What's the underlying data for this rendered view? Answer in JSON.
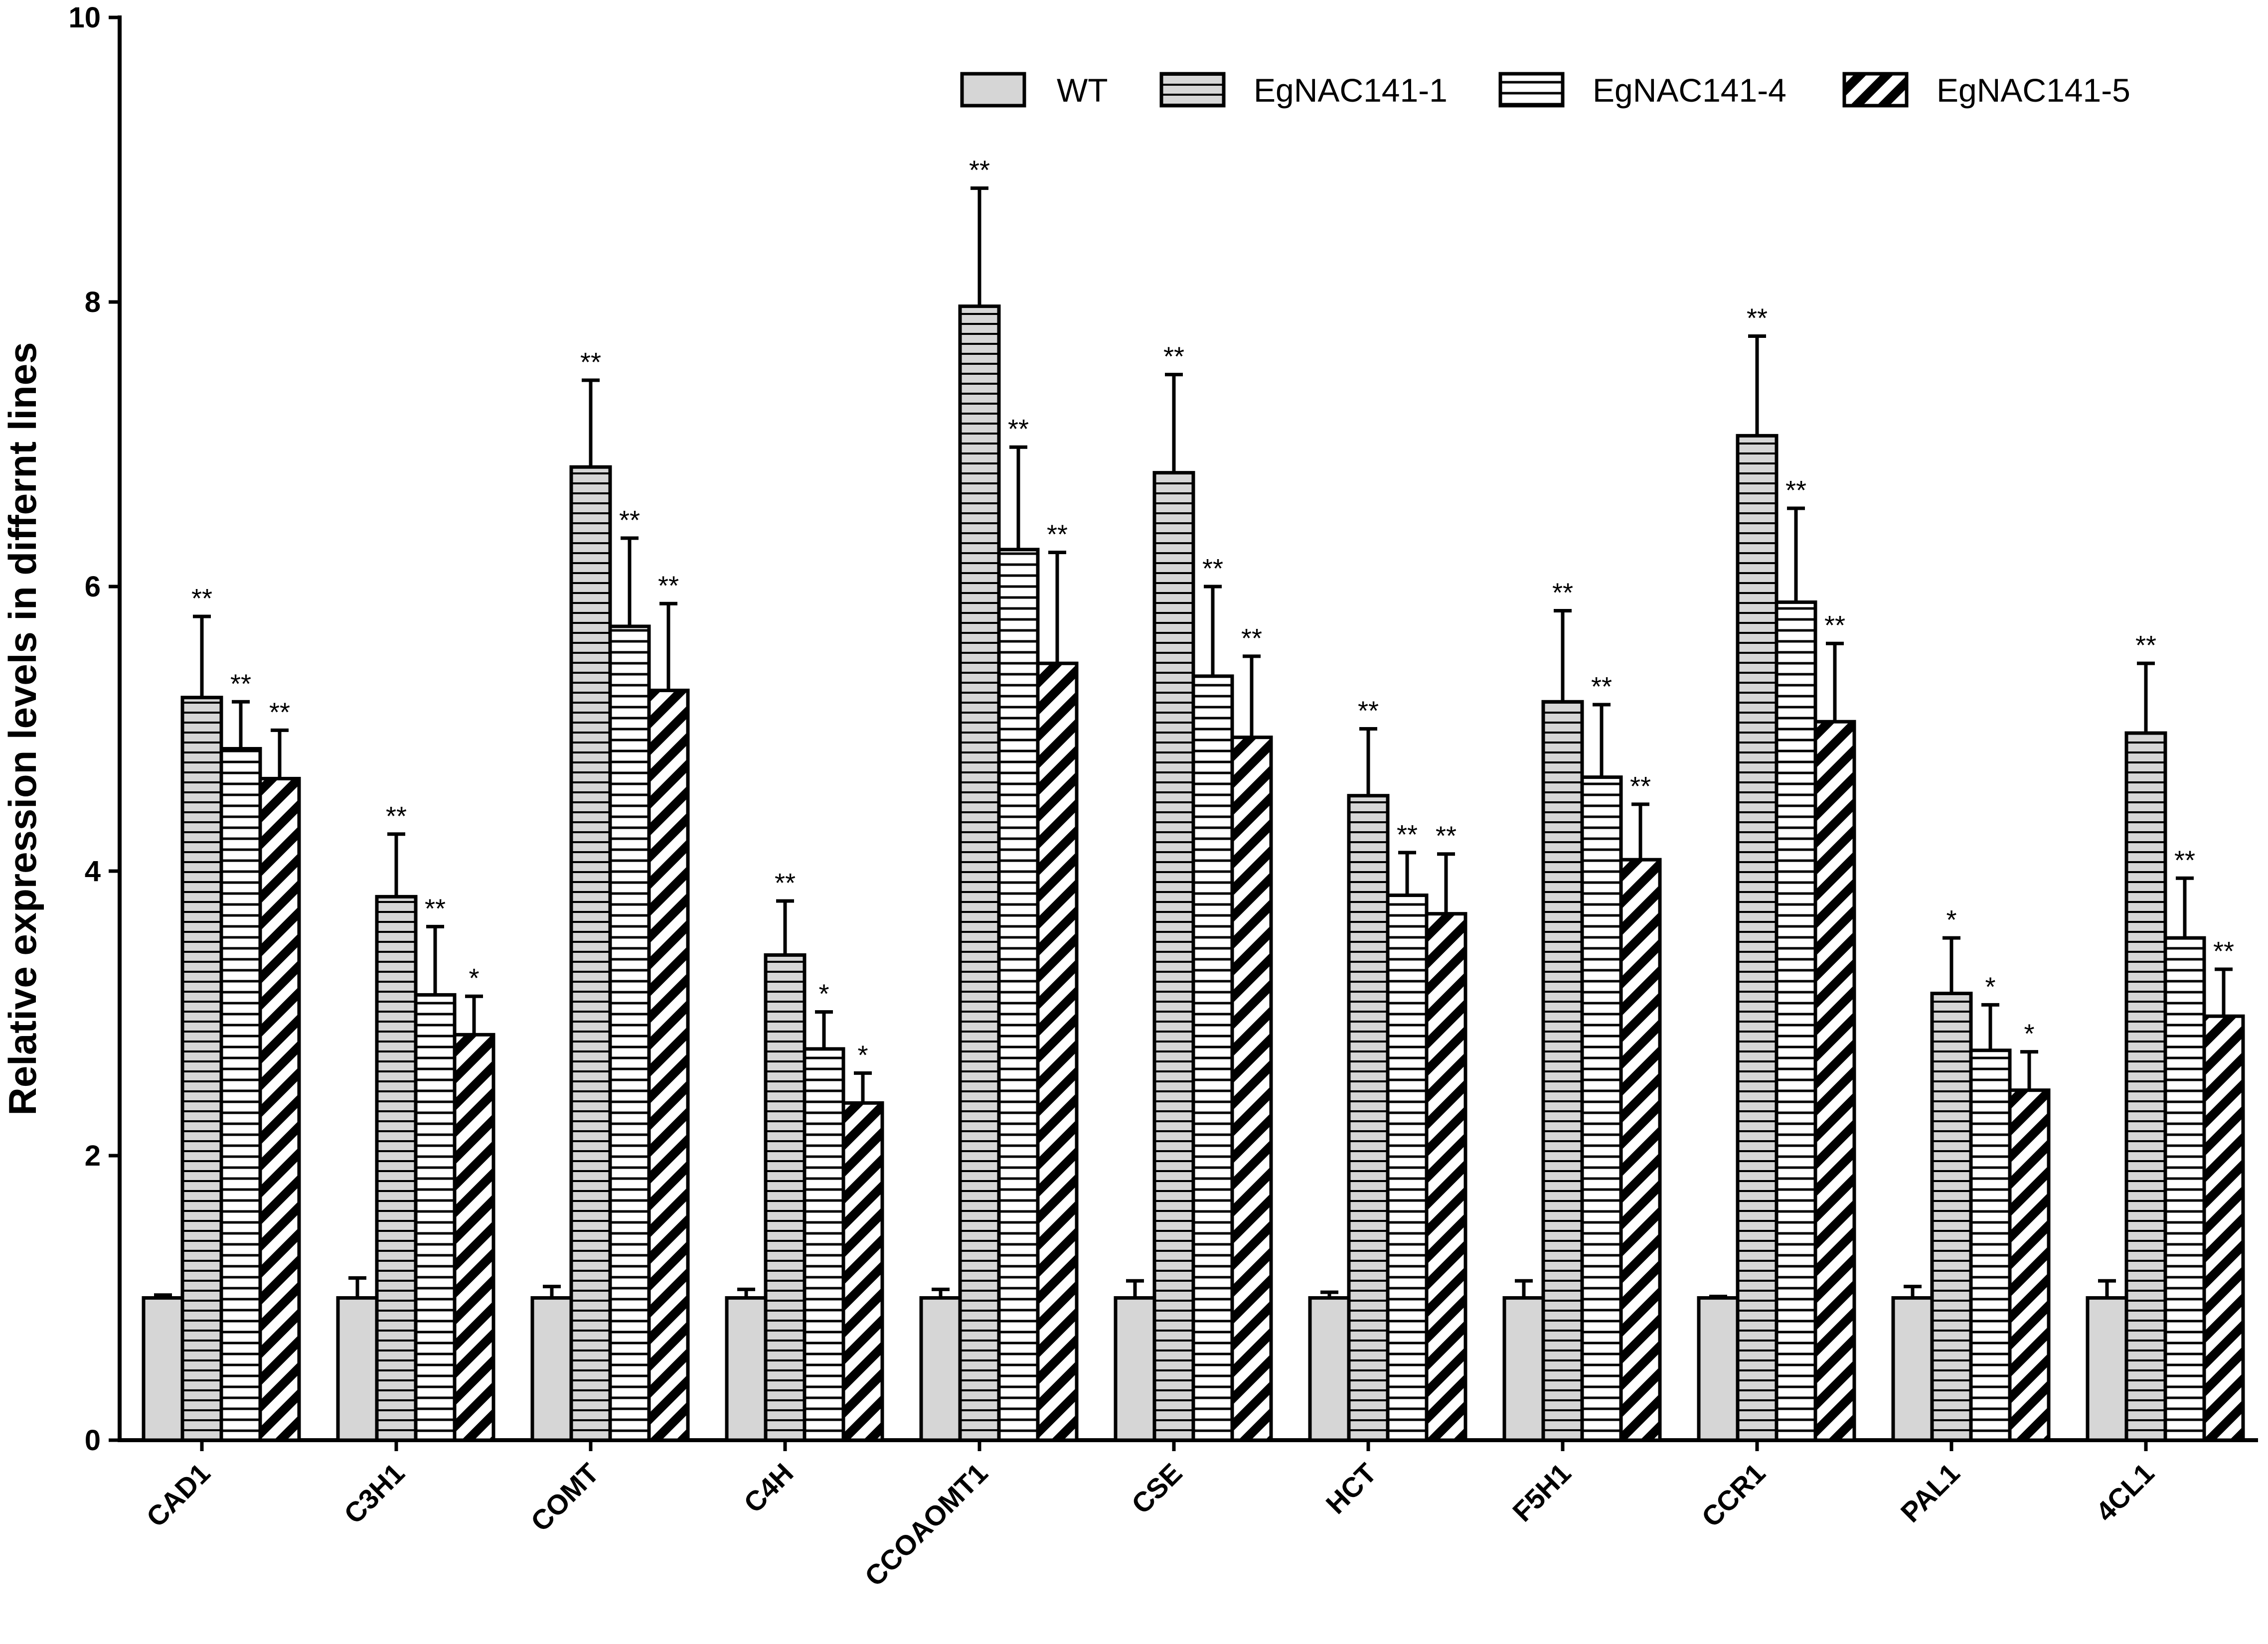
{
  "chart_data": {
    "type": "bar",
    "title": "",
    "xlabel": "",
    "ylabel": "Relative expression levels in differnt lines",
    "ylim": [
      0,
      10
    ],
    "yticks": [
      0,
      2,
      4,
      6,
      8,
      10
    ],
    "legend_position": "top-right",
    "grid": false,
    "categories": [
      "CAD1",
      "C3H1",
      "COMT",
      "C4H",
      "CCOAOMT1",
      "CSE",
      "HCT",
      "F5H1",
      "CCR1",
      "PAL1",
      "4CL1"
    ],
    "series": [
      {
        "name": "WT",
        "pattern": "solid-gray",
        "values": [
          1.0,
          1.0,
          1.0,
          1.0,
          1.0,
          1.0,
          1.0,
          1.0,
          1.0,
          1.0,
          1.0
        ],
        "errors": [
          0.02,
          0.14,
          0.08,
          0.06,
          0.06,
          0.12,
          0.04,
          0.12,
          0.01,
          0.08,
          0.12
        ],
        "significance": [
          "",
          "",
          "",
          "",
          "",
          "",
          "",
          "",
          "",
          "",
          ""
        ]
      },
      {
        "name": "EgNAC141-1",
        "pattern": "horizontal-lines-gray",
        "values": [
          5.22,
          3.82,
          6.84,
          3.41,
          7.97,
          6.8,
          4.53,
          5.19,
          7.06,
          3.14,
          4.97
        ],
        "errors": [
          0.57,
          0.44,
          0.61,
          0.38,
          0.83,
          0.69,
          0.47,
          0.64,
          0.7,
          0.39,
          0.49
        ],
        "significance": [
          "**",
          "**",
          "**",
          "**",
          "**",
          "**",
          "**",
          "**",
          "**",
          "*",
          "**"
        ]
      },
      {
        "name": "EgNAC141-4",
        "pattern": "horizontal-lines-white",
        "values": [
          4.86,
          3.13,
          5.72,
          2.75,
          6.26,
          5.37,
          3.83,
          4.66,
          5.89,
          2.74,
          3.53
        ],
        "errors": [
          0.33,
          0.48,
          0.62,
          0.26,
          0.72,
          0.63,
          0.3,
          0.51,
          0.66,
          0.32,
          0.42
        ],
        "significance": [
          "**",
          "**",
          "**",
          "*",
          "**",
          "**",
          "**",
          "**",
          "**",
          "*",
          "**"
        ]
      },
      {
        "name": "EgNAC141-5",
        "pattern": "diagonal-black",
        "values": [
          4.65,
          2.85,
          5.27,
          2.37,
          5.46,
          4.94,
          3.7,
          4.08,
          5.05,
          2.46,
          2.98
        ],
        "errors": [
          0.34,
          0.27,
          0.61,
          0.21,
          0.78,
          0.57,
          0.42,
          0.39,
          0.55,
          0.27,
          0.33
        ],
        "significance": [
          "**",
          "*",
          "**",
          "*",
          "**",
          "**",
          "**",
          "**",
          "**",
          "*",
          "**"
        ]
      }
    ]
  }
}
